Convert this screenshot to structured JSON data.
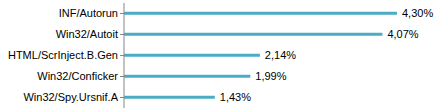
{
  "chart_data": {
    "type": "bar",
    "orientation": "horizontal",
    "categories": [
      "INF/Autorun",
      "Win32/Autoit",
      "HTML/ScrInject.B.Gen",
      "Win32/Conficker",
      "Win32/Spy.Ursnif.A"
    ],
    "values": [
      4.3,
      4.07,
      2.14,
      1.99,
      1.43
    ],
    "value_labels": [
      "4,30%",
      "4,07%",
      "2,14%",
      "1,99%",
      "1,43%"
    ],
    "color": "#4bacc6",
    "data_labels": true,
    "tick_labels": "y",
    "grid": false
  }
}
